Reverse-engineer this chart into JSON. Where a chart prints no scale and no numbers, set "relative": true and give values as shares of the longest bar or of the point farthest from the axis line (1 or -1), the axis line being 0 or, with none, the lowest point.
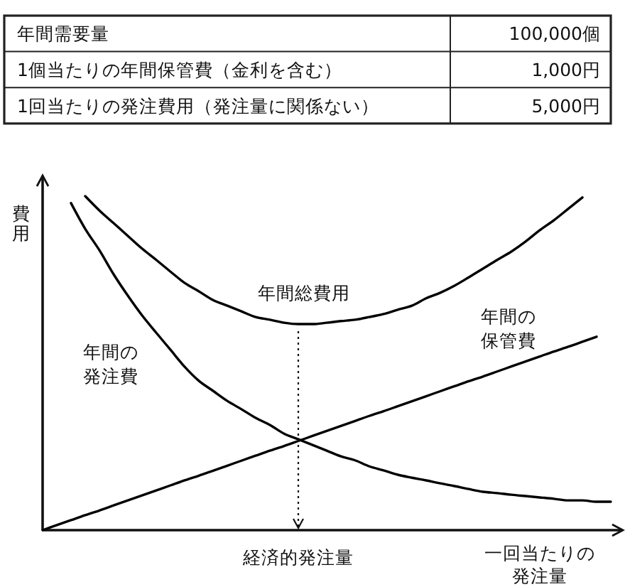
{
  "chart_data": [
    {
      "type": "other",
      "annotations": [
        "年間需要量",
        "100,000個",
        "1個当たりの年間保管費（金利を含む）",
        "1,000円",
        "1回当たりの発注費用（発注量に関係ない）",
        "5,000円"
      ]
    },
    {
      "type": "line",
      "relative": true,
      "xlabel": "一回当たりの発注量",
      "ylabel": "費用",
      "categories": [
        null,
        null,
        null,
        null,
        null,
        null,
        null,
        null,
        null,
        null,
        null,
        null,
        null,
        null,
        null,
        null,
        null,
        null,
        null,
        null,
        null,
        null,
        null,
        null,
        null,
        null,
        null,
        null,
        null,
        null,
        null,
        null,
        null,
        null,
        null,
        null,
        null,
        null,
        null,
        null,
        null
      ],
      "series": [
        {
          "name": "年間総費用",
          "color": "#000000",
          "values": [
            null,
            null,
            null,
            1,
            0.957,
            0.919,
            0.881,
            0.843,
            0.809,
            0.774,
            0.74,
            0.715,
            0.689,
            0.672,
            0.655,
            0.638,
            0.63,
            0.621,
            0.617,
            0.617,
            0.621,
            0.626,
            0.63,
            0.638,
            0.647,
            0.66,
            0.672,
            0.694,
            0.711,
            0.732,
            0.757,
            0.783,
            0.809,
            0.834,
            0.864,
            0.898,
            0.928,
            0.962,
            0.996,
            null,
            null
          ]
        },
        {
          "name": "年間の発注費",
          "color": "#000000",
          "values": [
            null,
            null,
            0.979,
            0.902,
            0.838,
            0.766,
            0.702,
            0.643,
            0.591,
            0.54,
            0.489,
            0.447,
            0.417,
            0.387,
            0.362,
            0.336,
            0.315,
            0.289,
            0.272,
            0.255,
            0.238,
            0.221,
            0.209,
            0.191,
            0.179,
            0.166,
            0.157,
            0.149,
            0.14,
            0.132,
            0.123,
            0.115,
            0.111,
            0.106,
            0.102,
            0.098,
            0.094,
            0.089,
            0.089,
            0.085,
            0.085
          ]
        },
        {
          "name": "年間の保管費",
          "color": "#000000",
          "values": [
            0,
            0.015,
            0.03,
            0.045,
            0.059,
            0.074,
            0.089,
            0.104,
            0.119,
            0.134,
            0.149,
            0.163,
            0.178,
            0.193,
            0.208,
            0.223,
            0.238,
            0.252,
            0.267,
            0.282,
            0.297,
            0.312,
            0.327,
            0.342,
            0.356,
            0.371,
            0.386,
            0.401,
            0.416,
            0.431,
            0.446,
            0.46,
            0.475,
            0.49,
            0.505,
            0.52,
            0.535,
            0.549,
            0.564,
            0.579,
            null
          ]
        }
      ],
      "annotations": [
        "経済的発注量"
      ]
    }
  ]
}
